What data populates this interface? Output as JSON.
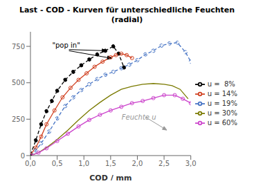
{
  "chart_data": {
    "type": "line",
    "title": "Last - COD - Kurven für unterschiedliche Feuchten\n(radial)",
    "x_label": "COD / mm",
    "xlim": [
      0,
      3.0
    ],
    "ylim": [
      0,
      850
    ],
    "yticks": [
      0,
      250,
      500,
      750
    ],
    "xticks": [
      {
        "value": 0.0,
        "label": "0,0"
      },
      {
        "value": 0.5,
        "label": "0,5"
      },
      {
        "value": 1.0,
        "label": "1,0"
      },
      {
        "value": 1.5,
        "label": "1,5"
      },
      {
        "value": 2.0,
        "label": "2,0"
      },
      {
        "value": 2.5,
        "label": "2,5"
      },
      {
        "value": 3.0,
        "label": "3,0"
      }
    ],
    "legend": "right",
    "series": [
      {
        "name": "u =  8%",
        "color": "#000000",
        "line_style": "dashed",
        "marker": "filled circle",
        "x": [
          0.0,
          0.1,
          0.2,
          0.3,
          0.4,
          0.5,
          0.65,
          0.8,
          0.95,
          1.1,
          1.25,
          1.4,
          1.55,
          1.65,
          1.75
        ],
        "values": [
          5,
          105,
          215,
          305,
          375,
          445,
          520,
          575,
          620,
          660,
          695,
          720,
          750,
          700,
          605
        ]
      },
      {
        "name": "u = 14%",
        "color": "#d04020",
        "line_style": "solid",
        "marker": "circle",
        "x": [
          0.0,
          0.1,
          0.2,
          0.3,
          0.45,
          0.6,
          0.75,
          0.9,
          1.05,
          1.2,
          1.35,
          1.5,
          1.6,
          1.7,
          1.8,
          1.9
        ],
        "values": [
          5,
          55,
          130,
          215,
          310,
          400,
          465,
          520,
          565,
          610,
          645,
          675,
          690,
          700,
          690,
          670
        ]
      },
      {
        "name": "u = 19%",
        "color": "#4472c4",
        "line_style": "dashed",
        "marker": "circle",
        "x": [
          0.0,
          0.1,
          0.2,
          0.35,
          0.5,
          0.65,
          0.8,
          0.95,
          1.1,
          1.25,
          1.4,
          1.55,
          1.7,
          1.85,
          2.0,
          2.15,
          2.3,
          2.45,
          2.6,
          2.75,
          2.9,
          3.0
        ],
        "values": [
          0,
          35,
          85,
          165,
          255,
          340,
          400,
          450,
          490,
          525,
          555,
          575,
          600,
          625,
          655,
          695,
          720,
          755,
          770,
          775,
          710,
          645
        ]
      },
      {
        "name": "u = 30%",
        "color": "#7a7a00",
        "line_style": "solid",
        "marker": "none",
        "x": [
          0.0,
          0.15,
          0.3,
          0.5,
          0.7,
          0.9,
          1.1,
          1.3,
          1.5,
          1.7,
          1.9,
          2.1,
          2.3,
          2.5,
          2.65,
          2.8,
          2.95
        ],
        "values": [
          0,
          20,
          55,
          110,
          175,
          245,
          310,
          365,
          415,
          455,
          475,
          490,
          495,
          490,
          480,
          455,
          390
        ]
      },
      {
        "name": "u = 60%",
        "color": "#cc44cc",
        "line_style": "solid",
        "marker": "circle",
        "x": [
          0.0,
          0.15,
          0.3,
          0.5,
          0.7,
          0.9,
          1.1,
          1.3,
          1.5,
          1.7,
          1.9,
          2.1,
          2.3,
          2.5,
          2.7,
          2.85,
          3.0
        ],
        "values": [
          0,
          20,
          50,
          100,
          150,
          200,
          245,
          280,
          310,
          335,
          360,
          375,
          395,
          415,
          415,
          390,
          360
        ]
      }
    ],
    "annotations": [
      {
        "text": "\"pop in\"",
        "x": 0.42,
        "y": 738,
        "color": "#000000",
        "arrows": [
          {
            "xy": [
              1.42,
              720
            ],
            "xytext": [
              0.72,
              728
            ]
          },
          {
            "xy": [
              1.52,
              668
            ],
            "xytext": [
              0.72,
              720
            ]
          }
        ]
      },
      {
        "text": "Feuchte u",
        "x": 1.72,
        "y": 240,
        "color": "#999999",
        "arrows": [
          {
            "xy": [
              2.55,
              175
            ],
            "xytext": [
              2.15,
              265
            ]
          }
        ]
      }
    ]
  }
}
